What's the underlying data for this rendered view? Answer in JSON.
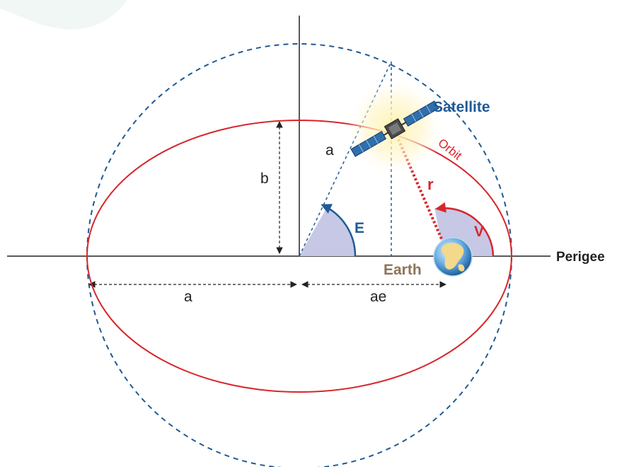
{
  "colors": {
    "orbit": "#d7262b",
    "circle": "#1f5a96",
    "angle_fill": "#c6c8e6",
    "axis": "#222222",
    "earth_label": "#8c7358",
    "satellite_label": "#1f5a96",
    "angle_E": "#1f5a96",
    "angle_V": "#d7262b"
  },
  "labels": {
    "satellite": "Satellite",
    "orbit": "Orbit",
    "earth": "Earth",
    "perigee": "Perigee",
    "radius_r": "r",
    "anomaly_E": "E",
    "anomaly_V": "V",
    "semi_major_top": "a",
    "semi_major_bottom": "a",
    "semi_minor": "b",
    "focal_distance": "ae"
  },
  "icons": {
    "earth": "earth-globe-icon",
    "satellite": "satellite-icon"
  }
}
